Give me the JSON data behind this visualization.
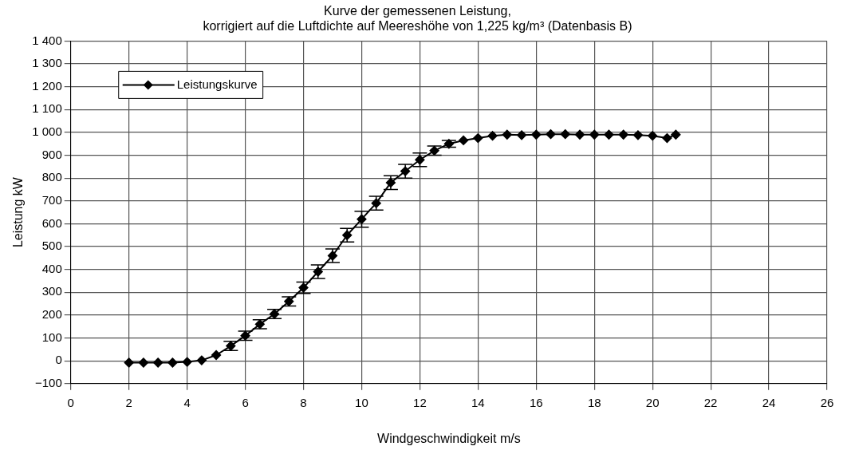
{
  "chart_data": {
    "type": "line",
    "title": "Kurve der gemessenen Leistung,\nkorrigiert auf die Luftdichte auf Meereshöhe von 1,225 kg/m³ (Datenbasis B)",
    "xlabel": "Windgeschwindigkeit m/s",
    "ylabel": "Leistung kW",
    "xlim": [
      0,
      26
    ],
    "xticks": [
      0,
      2,
      4,
      6,
      8,
      10,
      12,
      14,
      16,
      18,
      20,
      22,
      24,
      26
    ],
    "ylim": [
      -100,
      1400
    ],
    "yticks": [
      {
        "value": -100,
        "label": "−100"
      },
      0,
      100,
      200,
      300,
      400,
      500,
      600,
      700,
      800,
      900,
      {
        "value": 1000,
        "label": "1 000"
      },
      {
        "value": 1100,
        "label": "1 100"
      },
      {
        "value": 1200,
        "label": "1 200"
      },
      {
        "value": 1300,
        "label": "1 300"
      },
      {
        "value": 1400,
        "label": "1 400"
      }
    ],
    "grid": true,
    "legend": "top left",
    "marker": "diamond",
    "line_style": "solid",
    "x": [
      2,
      2.5,
      3,
      3.5,
      4,
      4.5,
      5,
      5.5,
      6,
      6.5,
      7,
      7.5,
      8,
      8.5,
      9,
      9.5,
      10,
      10.5,
      11,
      11.5,
      12,
      12.5,
      13,
      13.5,
      14,
      14.5,
      15,
      15.5,
      16,
      16.5,
      17,
      17.5,
      18,
      18.5,
      19,
      19.5,
      20,
      20.5,
      20.8
    ],
    "series": [
      {
        "name": "Leistungskurve",
        "color": "#000000",
        "values": [
          -8,
          -8,
          -8,
          -8,
          -5,
          2,
          25,
          65,
          110,
          160,
          205,
          260,
          320,
          390,
          460,
          550,
          620,
          690,
          780,
          830,
          880,
          920,
          950,
          965,
          975,
          985,
          990,
          988,
          990,
          992,
          992,
          990,
          990,
          990,
          990,
          988,
          985,
          975,
          990
        ],
        "errors": [
          null,
          null,
          null,
          null,
          null,
          null,
          null,
          20,
          20,
          20,
          20,
          20,
          25,
          30,
          30,
          30,
          35,
          30,
          30,
          30,
          30,
          20,
          15,
          null,
          null,
          null,
          null,
          null,
          null,
          null,
          null,
          null,
          null,
          null,
          null,
          null,
          null,
          null,
          null
        ]
      }
    ]
  }
}
